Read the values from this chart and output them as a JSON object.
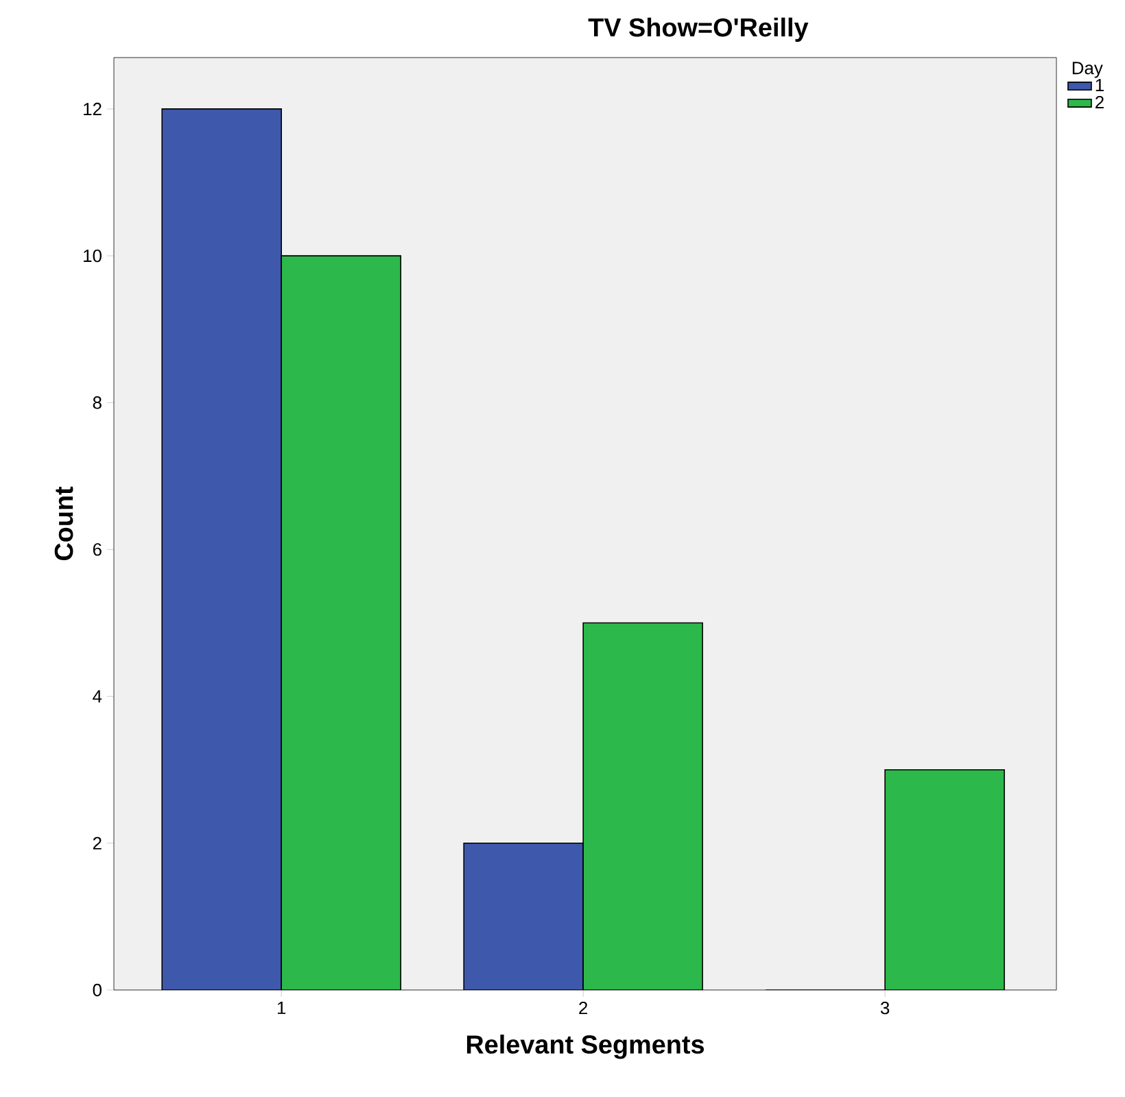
{
  "chart_data": {
    "type": "bar",
    "title": "TV Show=O'Reilly",
    "xlabel": "Relevant Segments",
    "ylabel": "Count",
    "legend_title": "Day",
    "categories": [
      "1",
      "2",
      "3"
    ],
    "series": [
      {
        "name": "1",
        "color": "#3e58ac",
        "values": [
          12,
          2,
          0
        ]
      },
      {
        "name": "2",
        "color": "#2db84b",
        "values": [
          10,
          5,
          3
        ]
      }
    ],
    "ylim": [
      0,
      12.7
    ],
    "yticks": [
      0,
      2,
      4,
      6,
      8,
      10,
      12
    ],
    "grid": false,
    "legend": "top right"
  }
}
